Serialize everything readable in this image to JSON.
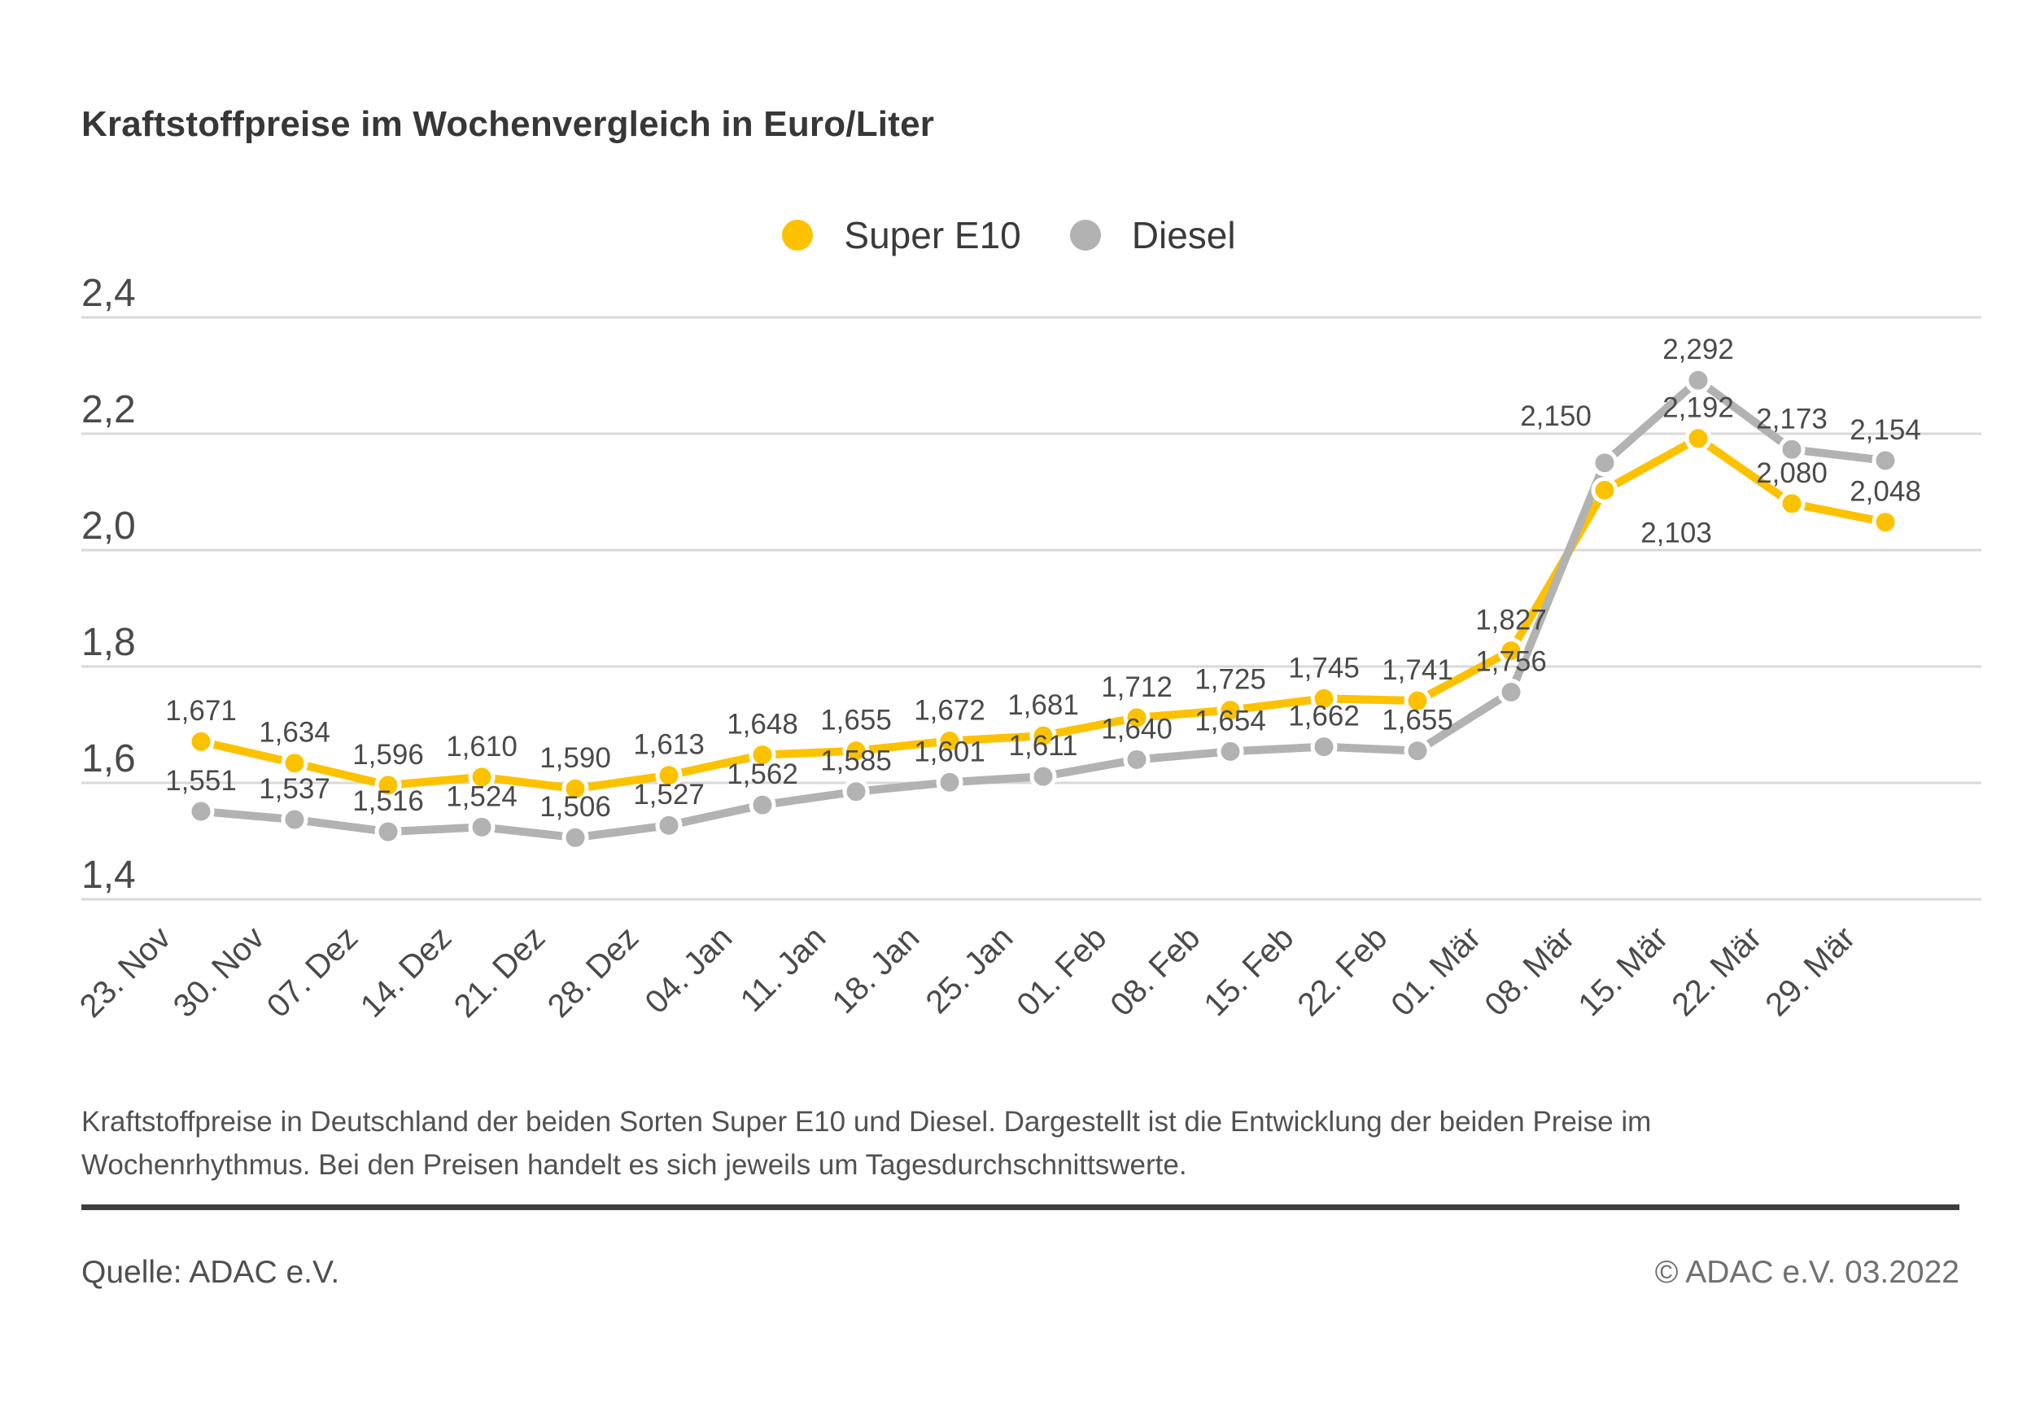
{
  "title": "Kraftstoffpreise im Wochenvergleich in Euro/Liter",
  "legend": {
    "items": [
      {
        "label": "Super E10",
        "color": "#FCC200"
      },
      {
        "label": "Diesel",
        "color": "#B2B2B2"
      }
    ]
  },
  "chart_data": {
    "type": "line",
    "title": "Kraftstoffpreise im Wochenvergleich in Euro/Liter",
    "unit": "Euro/Liter",
    "categories": [
      "23. Nov",
      "30. Nov",
      "07. Dez",
      "14. Dez",
      "21. Dez",
      "28. Dez",
      "04. Jan",
      "11. Jan",
      "18. Jan",
      "25. Jan",
      "01. Feb",
      "08. Feb",
      "15. Feb",
      "22. Feb",
      "01. Mär",
      "08. Mär",
      "15. Mär",
      "22. Mär",
      "29. Mär"
    ],
    "series": [
      {
        "name": "Super E10",
        "color": "#FCC200",
        "values": [
          1.671,
          1.634,
          1.596,
          1.61,
          1.59,
          1.613,
          1.648,
          1.655,
          1.672,
          1.681,
          1.712,
          1.725,
          1.745,
          1.741,
          1.827,
          2.103,
          2.192,
          2.08,
          2.048
        ],
        "label_offsets": {
          "15": [
            88,
            64
          ]
        }
      },
      {
        "name": "Diesel",
        "color": "#B2B2B2",
        "values": [
          1.551,
          1.537,
          1.516,
          1.524,
          1.506,
          1.527,
          1.562,
          1.585,
          1.601,
          1.611,
          1.64,
          1.654,
          1.662,
          1.655,
          1.756,
          2.15,
          2.292,
          2.173,
          2.154
        ],
        "label_offsets": {
          "15": [
            -60,
            -46
          ]
        }
      }
    ],
    "xlabel": "",
    "ylabel": "",
    "ylim": [
      1.4,
      2.4
    ],
    "yticks": [
      2.4,
      2.2,
      2.0,
      1.8,
      1.6,
      1.4
    ],
    "ytick_labels": [
      "2,4",
      "2,2",
      "2,0",
      "1,8",
      "1,6",
      "1,4"
    ],
    "grid": true,
    "legend_position": "top-center",
    "value_labels": true,
    "value_label_decimal_separator": ","
  },
  "caption": {
    "line1": "Kraftstoffpreise in Deutschland der beiden Sorten Super E10 und Diesel. Dargestellt ist die Entwicklung der beiden Preise im",
    "line2": "Wochenrhythmus. Bei den Preisen handelt es sich jeweils um Tagesdurchschnittswerte."
  },
  "footer": {
    "source": "Quelle: ADAC e.V.",
    "copyright": "© ADAC e.V. 03.2022"
  }
}
